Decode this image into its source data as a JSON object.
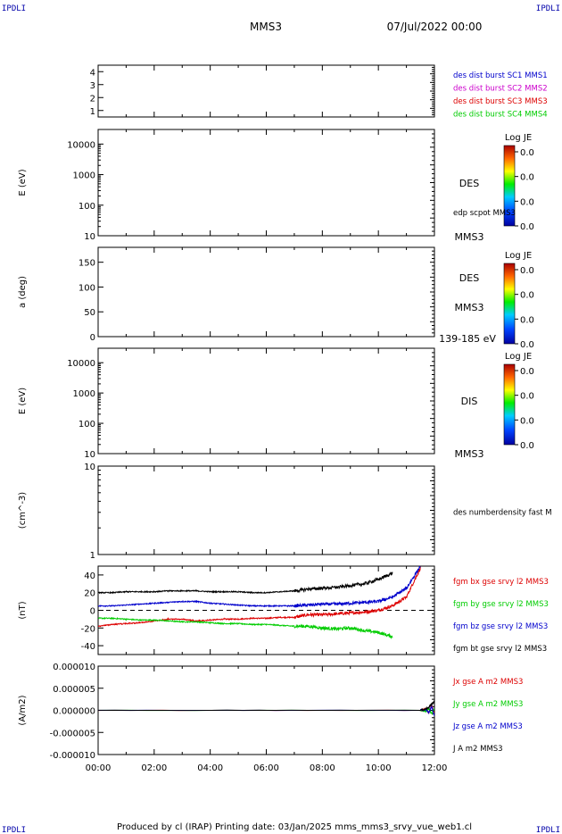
{
  "header": {
    "corner_left": "IPDLI",
    "corner_right": "IPDLI",
    "title": "MMS3",
    "date": "07/Jul/2022 00:00",
    "corner_bottom_left": "IPDLI",
    "corner_bottom_right": "IPDLI"
  },
  "footer": {
    "credit": "Produced by cl (IRAP)   Printing date: 03/Jan/2025   mms_mms3_srvy_vue_web1.cl"
  },
  "colors": {
    "blue": "#0000cc",
    "magenta": "#cc00cc",
    "red": "#dd0000",
    "green": "#00cc00",
    "black": "#000000"
  },
  "chart_data": [
    {
      "type": "line",
      "panel": "spacecraft",
      "ylim": [
        0.5,
        4.5
      ],
      "yticks": [
        1,
        2,
        3,
        4
      ],
      "ytick_labels": [
        "1",
        "2",
        "3",
        "4"
      ],
      "ylabel": "",
      "legend": [
        {
          "text": "des dist burst SC1 MMS1",
          "color": "#0000cc"
        },
        {
          "text": "des dist burst SC2 MMS2",
          "color": "#cc00cc"
        },
        {
          "text": "des dist burst SC3 MMS3",
          "color": "#dd0000"
        },
        {
          "text": "des dist burst SC4 MMS4",
          "color": "#00cc00"
        }
      ]
    },
    {
      "type": "heatmap",
      "panel": "des_energy",
      "log": true,
      "ylim": [
        10,
        30000
      ],
      "yticks": [
        10,
        100,
        1000,
        10000
      ],
      "ytick_labels": [
        "10",
        "100",
        "1000",
        "10000"
      ],
      "ylabel": "E (eV)",
      "side_labels": [
        "DES",
        "edp scpot MMS3",
        "MMS3"
      ],
      "colorbar": {
        "title": "Log JE",
        "ticks": [
          "0.0",
          "0.0",
          "0.0",
          "0.0"
        ]
      }
    },
    {
      "type": "heatmap",
      "panel": "des_pitch",
      "ylim": [
        0,
        180
      ],
      "yticks": [
        0,
        50,
        100,
        150
      ],
      "ytick_labels": [
        "0",
        "50",
        "100",
        "150"
      ],
      "ylabel": "a (deg)",
      "side_labels": [
        "DES",
        "MMS3",
        "139-185 eV"
      ],
      "colorbar": {
        "title": "Log JE",
        "ticks": [
          "0.0",
          "0.0",
          "0.0",
          "0.0"
        ]
      }
    },
    {
      "type": "heatmap",
      "panel": "dis_energy",
      "log": true,
      "ylim": [
        10,
        30000
      ],
      "yticks": [
        10,
        100,
        1000,
        10000
      ],
      "ytick_labels": [
        "10",
        "100",
        "1000",
        "10000"
      ],
      "ylabel": "E (eV)",
      "side_labels": [
        "DIS",
        "MMS3"
      ],
      "colorbar": {
        "title": "Log JE",
        "ticks": [
          "0.0",
          "0.0",
          "0.0",
          "0.0"
        ]
      }
    },
    {
      "type": "line",
      "panel": "density",
      "log": true,
      "ylim": [
        1,
        10
      ],
      "yticks": [
        1,
        10
      ],
      "ytick_labels": [
        "1",
        "10"
      ],
      "ylabel": "(cm^-3)",
      "legend": [
        {
          "text": "des numberdensity fast M",
          "color": "#000000"
        }
      ]
    },
    {
      "type": "line",
      "panel": "magnetic_field",
      "ylim": [
        -50,
        50
      ],
      "yticks": [
        -40,
        -20,
        0,
        20,
        40
      ],
      "ytick_labels": [
        "-40",
        "-20",
        "0",
        "20",
        "40"
      ],
      "ylabel": "(nT)",
      "x": [
        0,
        0.5,
        1,
        1.5,
        2,
        2.5,
        3,
        3.5,
        4,
        4.5,
        5,
        5.5,
        6,
        6.5,
        7,
        7.5,
        8,
        8.5,
        9,
        9.5,
        10,
        10.5,
        11,
        11.5
      ],
      "series": [
        {
          "name": "fgm bx gse srvy l2 MMS3",
          "color": "#dd0000",
          "values": [
            -18,
            -16,
            -15,
            -14,
            -12,
            -10,
            -10,
            -12,
            -11,
            -10,
            -10,
            -9,
            -9,
            -8,
            -8,
            -5,
            -5,
            -4,
            -3,
            -2,
            0,
            5,
            15,
            48
          ]
        },
        {
          "name": "fgm by gse srvy l2 MMS3",
          "color": "#00cc00",
          "values": [
            -9,
            -9,
            -10,
            -11,
            -11,
            -12,
            -13,
            -13,
            -14,
            -15,
            -15,
            -16,
            -16,
            -17,
            -18,
            -18,
            -20,
            -21,
            -20,
            -23,
            -25,
            -30,
            null,
            null
          ]
        },
        {
          "name": "fgm bz gse srvy l2 MMS3",
          "color": "#0000cc",
          "values": [
            5,
            5,
            6,
            7,
            8,
            9,
            10,
            10,
            8,
            7,
            6,
            5,
            5,
            5,
            5,
            6,
            7,
            7,
            8,
            9,
            10,
            15,
            25,
            50
          ]
        },
        {
          "name": "fgm bt gse srvy l2 MMS3",
          "color": "#000000",
          "values": [
            20,
            20,
            21,
            21,
            21,
            22,
            22,
            22,
            21,
            21,
            21,
            20,
            20,
            21,
            22,
            24,
            25,
            26,
            28,
            30,
            35,
            42,
            null,
            null
          ]
        }
      ]
    },
    {
      "type": "line",
      "panel": "current_density",
      "ylim": [
        -1e-05,
        1e-05
      ],
      "yticks": [
        -1e-05,
        -5e-06,
        0,
        5e-06,
        1e-05
      ],
      "ytick_labels": [
        "-0.000010",
        "-0.000005",
        "0.000000",
        "0.000005",
        "0.000010"
      ],
      "ylabel": "(A/m2)",
      "x": [
        0,
        11.5,
        11.7,
        11.8,
        11.9,
        12.0
      ],
      "series": [
        {
          "name": "Jx gse A m2 MMS3",
          "color": "#dd0000",
          "values": [
            0,
            0,
            3e-07,
            -6e-07,
            1.1e-06,
            -8e-07
          ]
        },
        {
          "name": "Jy gse A m2 MMS3",
          "color": "#00cc00",
          "values": [
            0,
            0,
            -2e-07,
            4e-07,
            -7e-07,
            5e-07
          ]
        },
        {
          "name": "Jz gse A m2 MMS3",
          "color": "#0000cc",
          "values": [
            0,
            0,
            2e-07,
            -5e-07,
            9e-07,
            -1.2e-06
          ]
        },
        {
          "name": "J A m2 MMS3",
          "color": "#000000",
          "values": [
            0,
            0,
            3e-07,
            7e-07,
            1.4e-06,
            2e-06
          ]
        }
      ]
    }
  ],
  "x_axis": {
    "tick_labels": [
      "00:00",
      "02:00",
      "04:00",
      "06:00",
      "08:00",
      "10:00",
      "12:00"
    ],
    "xlim": [
      0,
      12
    ]
  }
}
